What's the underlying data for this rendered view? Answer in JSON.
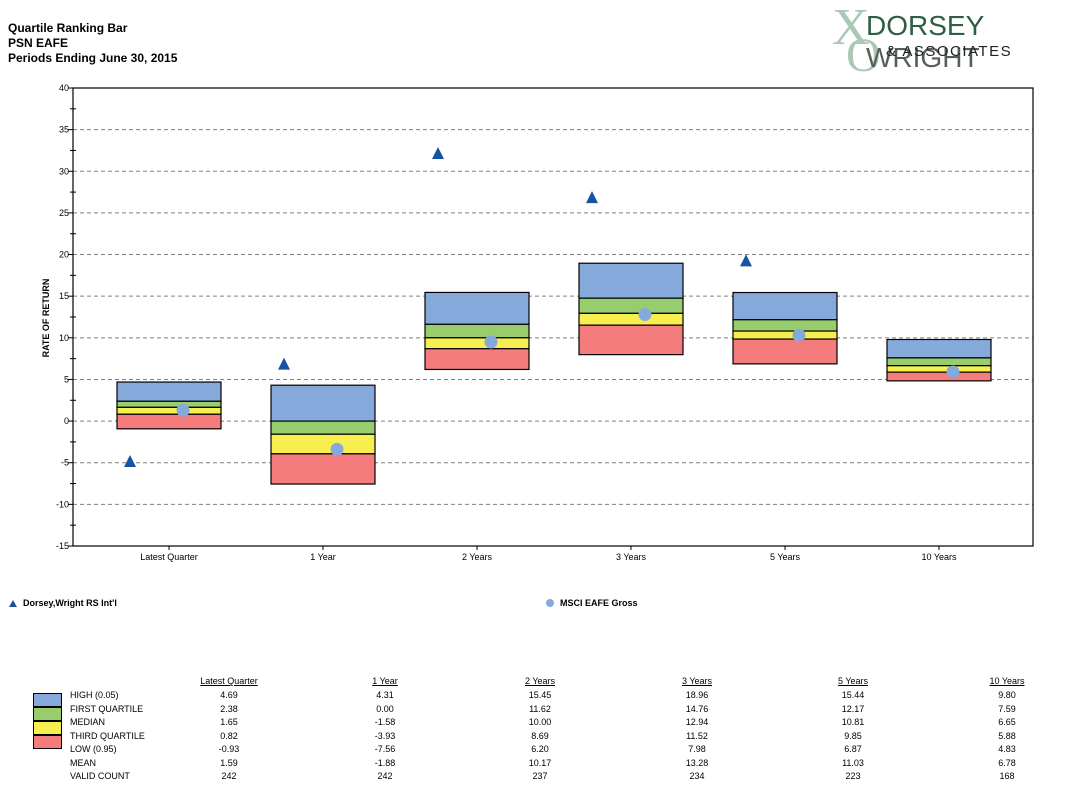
{
  "header": {
    "title": "Quartile Ranking Bar",
    "subtitle": "PSN EAFE",
    "period": "Periods Ending June 30, 2015"
  },
  "logo": {
    "mark": "XO",
    "brand_part1": "DORSEY",
    "brand_part2": "WRIGHT",
    "sub": "& ASSOCIATES"
  },
  "colors": {
    "high": "#86a9dc",
    "first_quartile": "#97cd6c",
    "median": "#f7ef50",
    "third_quartile": "#f47c7c",
    "triangle": "#1753a3",
    "circle": "#86a9dc",
    "grid": "#808080"
  },
  "chart_data": {
    "type": "box",
    "title": "Quartile Ranking Bar",
    "xlabel": "",
    "ylabel": "RATE OF RETURN",
    "ylim": [
      -15,
      40
    ],
    "yticks": [
      40,
      35,
      30,
      25,
      20,
      15,
      10,
      5,
      0,
      -5,
      -10,
      -15
    ],
    "grid": true,
    "categories": [
      "Latest Quarter",
      "1 Year",
      "2 Years",
      "3 Years",
      "5 Years",
      "10 Years"
    ],
    "quartiles": {
      "high": [
        4.69,
        4.31,
        15.45,
        18.96,
        15.44,
        9.8
      ],
      "first_quartile": [
        2.38,
        0.0,
        11.62,
        14.76,
        12.17,
        7.59
      ],
      "median": [
        1.65,
        -1.58,
        10.0,
        12.94,
        10.81,
        6.65
      ],
      "third_quartile": [
        0.82,
        -3.93,
        8.69,
        11.52,
        9.85,
        5.88
      ],
      "low": [
        -0.93,
        -7.56,
        6.2,
        7.98,
        6.87,
        4.83
      ]
    },
    "series": [
      {
        "name": "Dorsey,Wright RS Int'l",
        "marker": "triangle",
        "values": [
          -4.8,
          6.9,
          32.2,
          26.9,
          19.3,
          null
        ]
      },
      {
        "name": "MSCI EAFE Gross",
        "marker": "circle",
        "values": [
          1.3,
          -3.4,
          9.5,
          12.8,
          10.3,
          5.9
        ]
      }
    ],
    "legend": "bottom"
  },
  "legend": {
    "series1": "Dorsey,Wright RS Int'l",
    "series2": "MSCI EAFE Gross"
  },
  "table": {
    "columns": [
      "Latest Quarter",
      "1 Year",
      "2 Years",
      "3 Years",
      "5 Years",
      "10 Years"
    ],
    "rows": [
      {
        "label": "HIGH (0.05)",
        "values": [
          "4.69",
          "4.31",
          "15.45",
          "18.96",
          "15.44",
          "9.80"
        ]
      },
      {
        "label": "FIRST QUARTILE",
        "values": [
          "2.38",
          "0.00",
          "11.62",
          "14.76",
          "12.17",
          "7.59"
        ]
      },
      {
        "label": "MEDIAN",
        "values": [
          "1.65",
          "-1.58",
          "10.00",
          "12.94",
          "10.81",
          "6.65"
        ]
      },
      {
        "label": "THIRD QUARTILE",
        "values": [
          "0.82",
          "-3.93",
          "8.69",
          "11.52",
          "9.85",
          "5.88"
        ]
      },
      {
        "label": "LOW (0.95)",
        "values": [
          "-0.93",
          "-7.56",
          "6.20",
          "7.98",
          "6.87",
          "4.83"
        ]
      },
      {
        "label": "MEAN",
        "values": [
          "1.59",
          "-1.88",
          "10.17",
          "13.28",
          "11.03",
          "6.78"
        ]
      },
      {
        "label": "VALID COUNT",
        "values": [
          "242",
          "242",
          "237",
          "234",
          "223",
          "168"
        ]
      }
    ]
  }
}
